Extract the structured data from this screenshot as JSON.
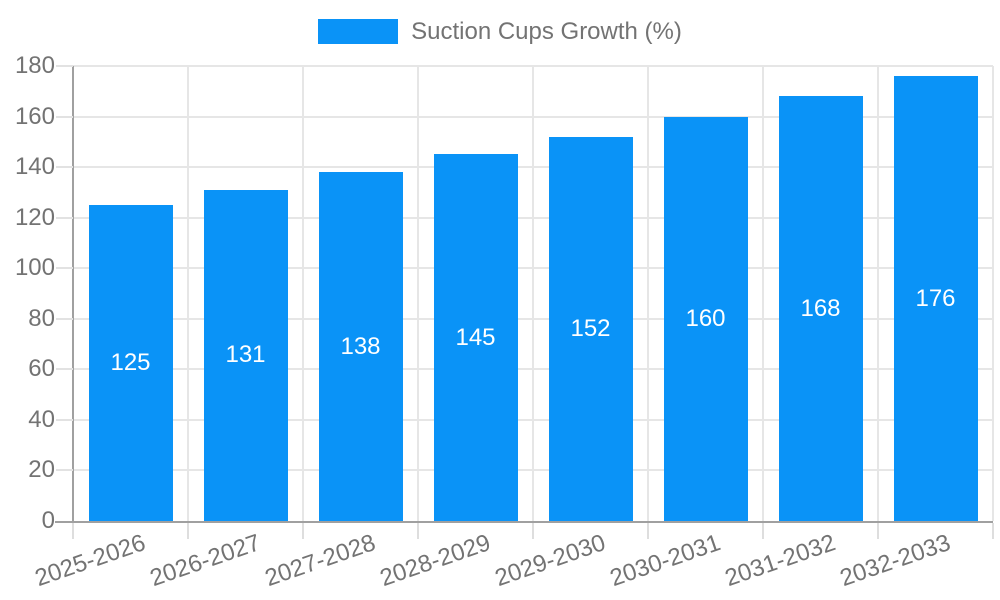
{
  "chart_data": {
    "type": "bar",
    "title": "",
    "legend_label": "Suction Cups Growth (%)",
    "legend_position": "top",
    "categories": [
      "2025-2026",
      "2026-2027",
      "2027-2028",
      "2028-2029",
      "2029-2030",
      "2030-2031",
      "2031-2032",
      "2032-2033"
    ],
    "values": [
      125,
      131,
      138,
      145,
      152,
      160,
      168,
      176
    ],
    "xlabel": "",
    "ylabel": "",
    "ylim": [
      0,
      180
    ],
    "yticks": [
      0,
      20,
      40,
      60,
      80,
      100,
      120,
      140,
      160,
      180
    ],
    "grid": true,
    "value_labels_shown": true,
    "x_label_rotation_deg": -19,
    "colors": {
      "bar": "#0a93f7",
      "value_label_text": "#ffffff",
      "axis_text": "#737373",
      "grid_line": "#e6e6e6",
      "axis_line": "#a0a0a0",
      "background": "#ffffff"
    }
  }
}
